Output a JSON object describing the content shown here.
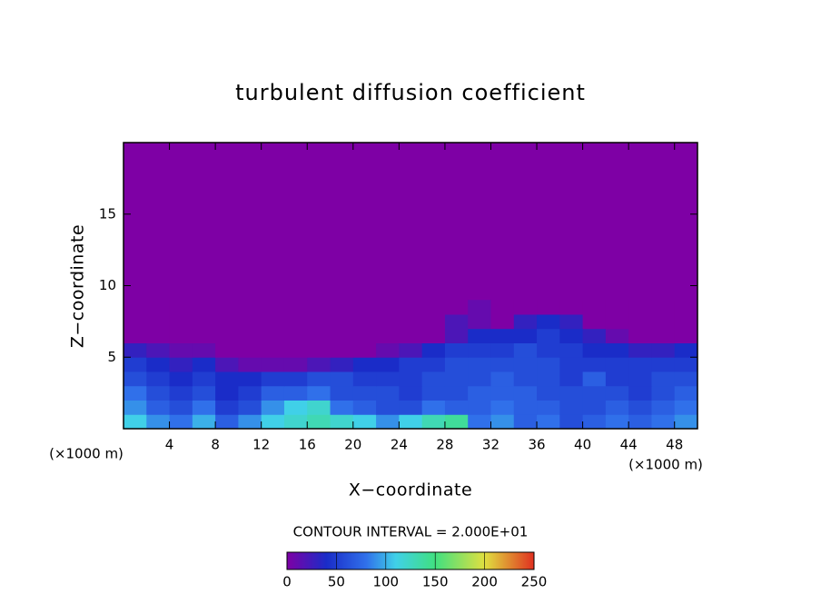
{
  "chart_data": {
    "type": "heatmap",
    "title": "turbulent diffusion coefficient",
    "x_label": "X−coordinate",
    "y_label": "Z−coordinate",
    "x_unit_label": "(×1000 m)",
    "annotation": "CONTOUR INTERVAL = 2.000E+01",
    "xlim": [
      0,
      50
    ],
    "ylim": [
      0,
      20
    ],
    "xticks": [
      4,
      8,
      12,
      16,
      20,
      24,
      28,
      32,
      36,
      40,
      44,
      48
    ],
    "yticks": [
      5,
      10,
      15
    ],
    "x": [
      1,
      3,
      5,
      7,
      9,
      11,
      13,
      15,
      17,
      19,
      21,
      23,
      25,
      27,
      29,
      31,
      33,
      35,
      37,
      39,
      41,
      43,
      45,
      47,
      49
    ],
    "y": [
      0.5,
      1.5,
      2.5,
      3.5,
      4.5,
      5.5,
      6.5,
      7.5,
      8.5
    ],
    "z": [
      [
        110,
        90,
        80,
        100,
        70,
        90,
        110,
        120,
        130,
        120,
        110,
        90,
        110,
        130,
        140,
        80,
        90,
        70,
        80,
        60,
        70,
        80,
        70,
        80,
        90
      ],
      [
        90,
        70,
        60,
        80,
        50,
        60,
        90,
        110,
        120,
        80,
        70,
        60,
        60,
        80,
        70,
        70,
        80,
        70,
        70,
        60,
        60,
        70,
        60,
        70,
        80
      ],
      [
        80,
        60,
        50,
        60,
        40,
        50,
        70,
        70,
        80,
        60,
        60,
        60,
        50,
        60,
        60,
        70,
        70,
        70,
        60,
        60,
        60,
        60,
        50,
        60,
        70
      ],
      [
        60,
        50,
        40,
        50,
        40,
        40,
        50,
        50,
        60,
        60,
        50,
        50,
        50,
        60,
        60,
        60,
        70,
        60,
        60,
        50,
        70,
        50,
        50,
        60,
        60
      ],
      [
        50,
        40,
        30,
        40,
        20,
        10,
        10,
        10,
        20,
        30,
        40,
        40,
        50,
        50,
        60,
        60,
        60,
        60,
        60,
        50,
        50,
        50,
        50,
        50,
        50
      ],
      [
        30,
        20,
        10,
        10,
        0,
        0,
        0,
        0,
        0,
        0,
        0,
        10,
        20,
        40,
        50,
        50,
        50,
        60,
        50,
        50,
        40,
        40,
        30,
        30,
        40
      ],
      [
        0,
        0,
        0,
        0,
        0,
        0,
        0,
        0,
        0,
        0,
        0,
        0,
        0,
        0,
        20,
        40,
        40,
        40,
        50,
        40,
        30,
        10,
        0,
        0,
        0
      ],
      [
        0,
        0,
        0,
        0,
        0,
        0,
        0,
        0,
        0,
        0,
        0,
        0,
        0,
        0,
        20,
        10,
        0,
        30,
        40,
        30,
        0,
        0,
        0,
        0,
        0
      ],
      [
        0,
        0,
        0,
        0,
        0,
        0,
        0,
        0,
        0,
        0,
        0,
        0,
        0,
        0,
        0,
        10,
        0,
        0,
        0,
        0,
        0,
        0,
        0,
        0,
        0
      ]
    ],
    "colorscale": [
      {
        "value": 0,
        "color": "#7e00a5"
      },
      {
        "value": 40,
        "color": "#1a2cc8"
      },
      {
        "value": 80,
        "color": "#3070ea"
      },
      {
        "value": 110,
        "color": "#40d0e8"
      },
      {
        "value": 150,
        "color": "#40e080"
      },
      {
        "value": 200,
        "color": "#e0e040"
      },
      {
        "value": 250,
        "color": "#e03020"
      }
    ],
    "colorbar_ticks": [
      0,
      50,
      100,
      150,
      200,
      250
    ]
  }
}
